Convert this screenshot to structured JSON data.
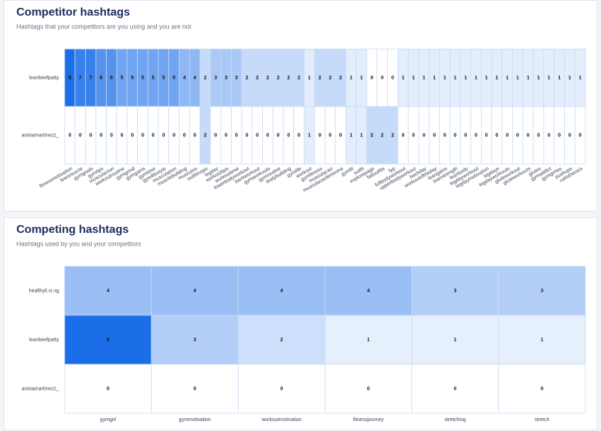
{
  "chart_data": [
    {
      "type": "heatmap",
      "title": "Competitor hashtags",
      "subtitle": "Hashtags that your competitors are you using and you are not",
      "color": "#1c6ee8",
      "categories": [
        "fitnessmotivation",
        "leanmuscle",
        "gymgoals",
        "gymtips",
        "musculacion",
        "workoutroutine",
        "gymgrind",
        "gymgains",
        "gymtime",
        "gymlifestyle",
        "musculation",
        "musclebuilding",
        "musculos",
        "outfitinspo",
        "legday",
        "workouttips",
        "workouttime",
        "lowerbodyworkout",
        "backworkout",
        "gymworkouts",
        "gymroutine",
        "bodybuilding",
        "gymlife",
        "workout",
        "gymfitness",
        "musculacao",
        "musculacaofeminina",
        "gymfit",
        "outfit",
        "explorepage",
        "falloutfits",
        "fyp",
        "fullbodyworkout",
        "upperbodyworkout",
        "backday",
        "workoutoftheday",
        "leangains",
        "leanstrength",
        "leanbody",
        "legdayworkout",
        "legdaymotivation",
        "legdays",
        "legdayworkouts",
        "gluteworkout",
        "gluteworkouts",
        "glutes",
        "gymaddict",
        "gymgirlies",
        "pushups",
        "calisthenics"
      ],
      "series": [
        {
          "name": "leanbeefpatty",
          "values": [
            8,
            7,
            7,
            6,
            6,
            5,
            5,
            5,
            5,
            5,
            5,
            4,
            4,
            2,
            3,
            3,
            3,
            2,
            2,
            2,
            2,
            2,
            2,
            1,
            2,
            2,
            2,
            1,
            1,
            0,
            0,
            0,
            1,
            1,
            1,
            1,
            1,
            1,
            1,
            1,
            1,
            1,
            1,
            1,
            1,
            1,
            1,
            1,
            1,
            1
          ]
        },
        {
          "name": "anisiamartinezz_",
          "values": [
            0,
            0,
            0,
            0,
            0,
            0,
            0,
            0,
            0,
            0,
            0,
            0,
            0,
            2,
            0,
            0,
            0,
            0,
            0,
            0,
            0,
            0,
            0,
            1,
            0,
            0,
            0,
            1,
            1,
            2,
            2,
            2,
            0,
            0,
            0,
            0,
            0,
            0,
            0,
            0,
            0,
            0,
            0,
            0,
            0,
            0,
            0,
            0,
            0,
            0
          ]
        }
      ]
    },
    {
      "type": "heatmap",
      "title": "Competing hashtags",
      "subtitle": "Hashtags used by you and your competitors",
      "color": "#1c6ee8",
      "categories": [
        "gymgirl",
        "gymmotivation",
        "workoutmotivation",
        "fitnessjourney",
        "stretching",
        "stretch"
      ],
      "series": [
        {
          "name": "healthyli.vi.ng",
          "values": [
            4,
            4,
            4,
            4,
            3,
            3
          ]
        },
        {
          "name": "leanbeefpatty",
          "values": [
            9,
            3,
            2,
            1,
            1,
            1
          ]
        },
        {
          "name": "anisiamartinezz_",
          "values": [
            0,
            0,
            0,
            0,
            0,
            0
          ]
        }
      ]
    }
  ]
}
